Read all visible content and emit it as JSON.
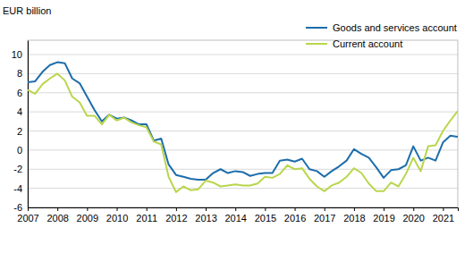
{
  "chart_data": {
    "type": "line",
    "y_label": "EUR billion",
    "categories": [
      "2007",
      null,
      null,
      null,
      "2008",
      null,
      null,
      null,
      "2009",
      null,
      null,
      null,
      "2010",
      null,
      null,
      null,
      "2011",
      null,
      null,
      null,
      "2012",
      null,
      null,
      null,
      "2013",
      null,
      null,
      null,
      "2014",
      null,
      null,
      null,
      "2015",
      null,
      null,
      null,
      "2016",
      null,
      null,
      null,
      "2017",
      null,
      null,
      null,
      "2018",
      null,
      null,
      null,
      "2019",
      null,
      null,
      null,
      "2020",
      null,
      null,
      null,
      "2021",
      null,
      null
    ],
    "series": [
      {
        "name": "Goods and services account",
        "color": "#1c6dab",
        "values": [
          7.1,
          7.2,
          8.2,
          8.9,
          9.2,
          9.1,
          7.5,
          7.0,
          5.6,
          4.2,
          3.0,
          3.7,
          3.3,
          3.4,
          3.1,
          2.7,
          2.7,
          1.0,
          1.2,
          -1.5,
          -2.6,
          -2.8,
          -3.0,
          -3.1,
          -3.1,
          -2.4,
          -2.0,
          -2.4,
          -2.2,
          -2.3,
          -2.7,
          -2.5,
          -2.4,
          -2.4,
          -1.1,
          -1.0,
          -1.2,
          -0.9,
          -2.0,
          -2.2,
          -2.8,
          -2.2,
          -1.7,
          -1.1,
          0.1,
          -0.4,
          -0.8,
          -1.8,
          -2.9,
          -2.1,
          -2.0,
          -1.6,
          0.4,
          -1.1,
          -0.8,
          -1.1,
          0.8,
          1.5,
          1.4
        ]
      },
      {
        "name": "Current account",
        "color": "#b9d64c",
        "values": [
          6.3,
          5.9,
          6.9,
          7.5,
          8.0,
          7.3,
          5.6,
          5.0,
          3.6,
          3.6,
          2.7,
          3.7,
          3.1,
          3.4,
          2.9,
          2.6,
          2.4,
          0.9,
          0.6,
          -2.8,
          -4.4,
          -3.8,
          -4.2,
          -4.1,
          -3.2,
          -3.4,
          -3.8,
          -3.7,
          -3.6,
          -3.7,
          -3.7,
          -3.5,
          -2.8,
          -2.9,
          -2.5,
          -1.6,
          -2.0,
          -1.9,
          -3.0,
          -3.8,
          -4.3,
          -3.7,
          -3.4,
          -2.8,
          -1.9,
          -2.4,
          -3.5,
          -4.3,
          -4.3,
          -3.4,
          -3.8,
          -2.5,
          -0.8,
          -2.2,
          0.4,
          0.5,
          2.0,
          3.1,
          4.1
        ]
      }
    ],
    "ylim": [
      -6,
      11.5
    ],
    "yticks": [
      -6,
      -4,
      -2,
      0,
      2,
      4,
      6,
      8,
      10
    ],
    "grid": true,
    "legend": "top-right"
  }
}
